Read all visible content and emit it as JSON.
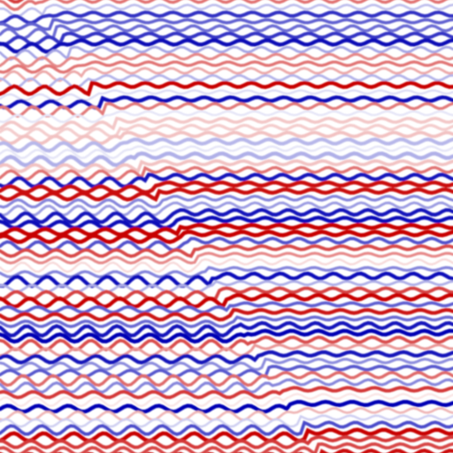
{
  "image": {
    "subject": "seismic-section",
    "colormap": {
      "positive": "#0000b4",
      "zero": "#ffffff",
      "negative": "#c80000"
    }
  }
}
